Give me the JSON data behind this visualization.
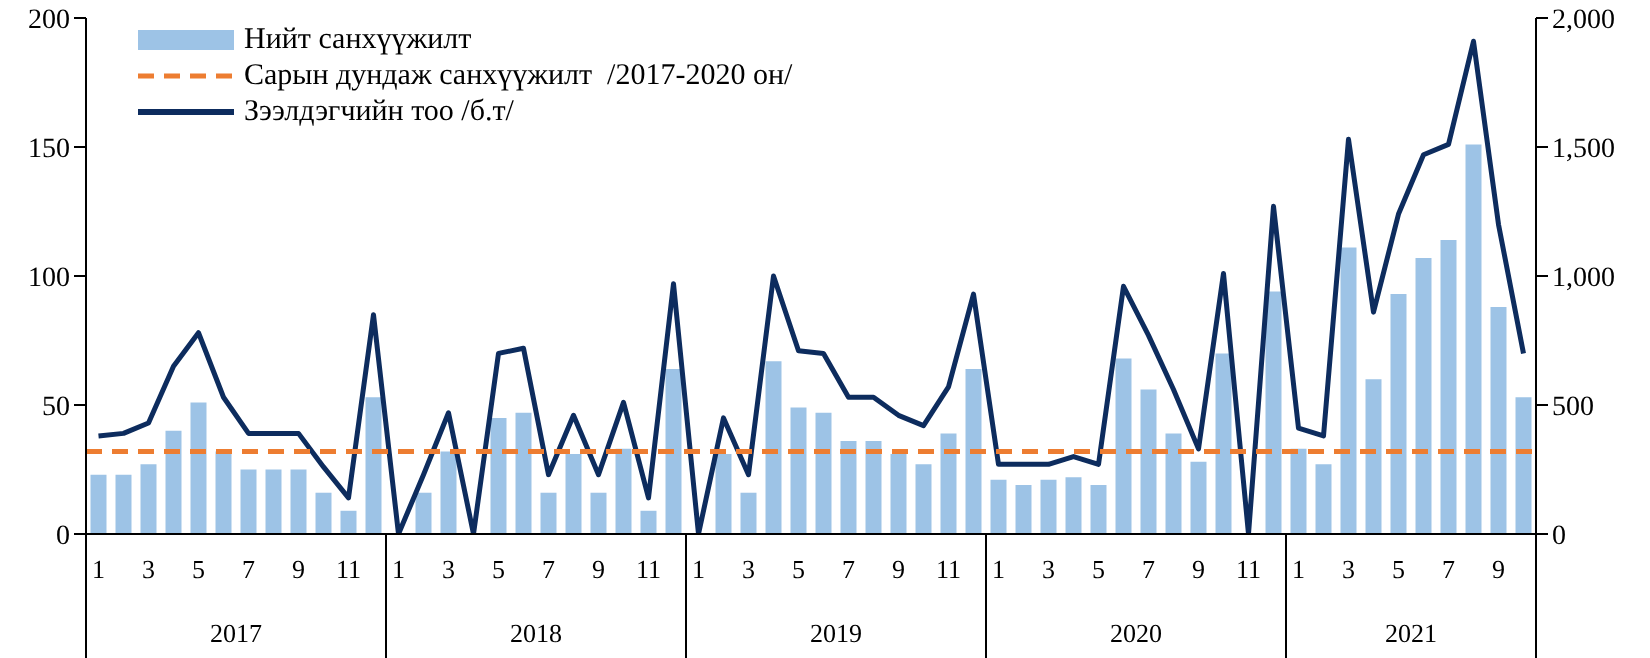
{
  "chart_data": {
    "type": "bar",
    "categories": [
      "1",
      null,
      "3",
      null,
      "5",
      null,
      "7",
      null,
      "9",
      null,
      "11",
      null,
      "1",
      null,
      "3",
      null,
      "5",
      null,
      "7",
      null,
      "9",
      null,
      "11",
      null,
      "1",
      null,
      "3",
      null,
      "5",
      null,
      "7",
      null,
      "9",
      null,
      "11",
      null,
      "1",
      null,
      "3",
      null,
      "5",
      null,
      "7",
      null,
      "9",
      null,
      "11",
      null,
      "1",
      null,
      "3",
      null,
      "5",
      null,
      "7",
      null,
      "9",
      null
    ],
    "series": [
      {
        "name": "Нийт санхүүжилт",
        "color": "#9dc3e6",
        "values": [
          23,
          23,
          27,
          40,
          51,
          32,
          25,
          25,
          25,
          16,
          9,
          53,
          0,
          16,
          32,
          0,
          45,
          47,
          16,
          31,
          16,
          33,
          9,
          64,
          0,
          31,
          16,
          67,
          49,
          47,
          36,
          36,
          31,
          27,
          39,
          64,
          21,
          19,
          21,
          22,
          19,
          68,
          56,
          39,
          28,
          70,
          0,
          94,
          33,
          27,
          111,
          60,
          93,
          107,
          114,
          151,
          88,
          53
        ]
      },
      {
        "name": "Зээлдэгчийн тоо /б.т/",
        "type": "line",
        "axis": "y2",
        "color": "#0d2c5e",
        "values": [
          380,
          390,
          430,
          650,
          780,
          530,
          390,
          390,
          390,
          260,
          140,
          850,
          0,
          230,
          470,
          0,
          700,
          720,
          230,
          460,
          230,
          510,
          140,
          970,
          0,
          450,
          230,
          1000,
          710,
          700,
          530,
          530,
          460,
          420,
          570,
          930,
          270,
          270,
          270,
          300,
          270,
          960,
          770,
          560,
          330,
          1010,
          0,
          1270,
          410,
          380,
          1530,
          860,
          1240,
          1470,
          1510,
          1910,
          1200,
          700
        ]
      }
    ],
    "ref_lines": [
      {
        "axis": "y",
        "value": 32,
        "label": "Сарын дундаж санхүүжилт  /2017-2020 он/",
        "color": "#ed7d31",
        "line_style": "dashed"
      }
    ],
    "annotations": [
      "2017",
      "2018",
      "2019",
      "2020",
      "2021"
    ],
    "ylim": [
      0,
      200
    ],
    "yticks": [
      0,
      50,
      100,
      150,
      200
    ],
    "y2lim": [
      0,
      2000
    ],
    "y2ticks": [
      0,
      500,
      {
        "value": 1000,
        "label": "1,000"
      },
      {
        "value": 1500,
        "label": "1,500"
      },
      {
        "value": 2000,
        "label": "2,000"
      }
    ],
    "legend": "top left",
    "grid": false,
    "marker": "none"
  }
}
